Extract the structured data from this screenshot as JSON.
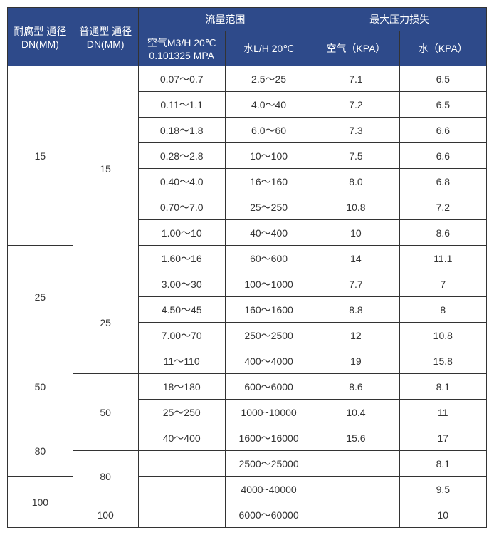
{
  "headers": {
    "h1": "耐腐型 通径 DN(MM)",
    "h2": "普通型 通径 DN(MM)",
    "flow_range": "流量范围",
    "max_loss": "最大压力损失",
    "air_m3": "空气M3/H 20℃ 0.101325 MPA",
    "water_l": "水L/H 20℃",
    "air_kpa": "空气（KPA）",
    "water_kpa": "水（KPA）"
  },
  "rows": [
    {
      "c1": "15",
      "c2": "15",
      "c3": "0.07～0.7",
      "c4": "2.5～25",
      "c5": "7.1",
      "c6": "6.5"
    },
    {
      "c3": "0.11～1.1",
      "c4": "4.0～40",
      "c5": "7.2",
      "c6": "6.5"
    },
    {
      "c3": "0.18～1.8",
      "c4": "6.0～60",
      "c5": "7.3",
      "c6": "6.6"
    },
    {
      "c3": "0.28～2.8",
      "c4": "10～100",
      "c5": "7.5",
      "c6": "6.6"
    },
    {
      "c3": "0.40～4.0",
      "c4": "16～160",
      "c5": "8.0",
      "c6": "6.8"
    },
    {
      "c3": "0.70～7.0",
      "c4": "25～250",
      "c5": "10.8",
      "c6": "7.2"
    },
    {
      "c3": "1.00～10",
      "c4": "40～400",
      "c5": "10",
      "c6": "8.6"
    },
    {
      "c1": "25",
      "c3": "1.60～16",
      "c4": "60～600",
      "c5": "14",
      "c6": "11.1"
    },
    {
      "c2": "25",
      "c3": "3.00～30",
      "c4": "100～1000",
      "c5": "7.7",
      "c6": "7"
    },
    {
      "c3": "4.50～45",
      "c4": "160～1600",
      "c5": "8.8",
      "c6": "8"
    },
    {
      "c3": "7.00～70",
      "c4": "250～2500",
      "c5": "12",
      "c6": "10.8"
    },
    {
      "c1": "50",
      "c3": "11～110",
      "c4": "400～4000",
      "c5": "19",
      "c6": "15.8"
    },
    {
      "c2": "50",
      "c3": "18～180",
      "c4": "600～6000",
      "c5": "8.6",
      "c6": "8.1"
    },
    {
      "c3": "25～250",
      "c4": "1000~10000",
      "c5": "10.4",
      "c6": "11"
    },
    {
      "c1": "80",
      "c3": "40～400",
      "c4": "1600～16000",
      "c5": "15.6",
      "c6": "17"
    },
    {
      "c2": "80",
      "c3": "",
      "c4": "2500～25000",
      "c5": "",
      "c6": "8.1"
    },
    {
      "c1": "100",
      "c3": "",
      "c4": "4000~40000",
      "c5": "",
      "c6": "9.5"
    },
    {
      "c2": "100",
      "c3": "",
      "c4": "6000～60000",
      "c5": "",
      "c6": "10"
    }
  ],
  "colors": {
    "header_bg": "#2e4a8a",
    "header_text": "#ffffff",
    "border": "#333333",
    "cell_text": "#333333"
  }
}
